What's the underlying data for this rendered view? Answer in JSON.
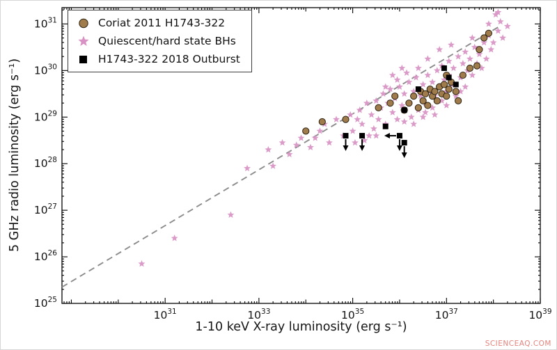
{
  "watermark": "SCIENCEAQ.COM",
  "chart_data": {
    "type": "scatter",
    "title": "",
    "xlabel": "1-10 keV X-ray luminosity (erg s⁻¹)",
    "ylabel": "5 GHz radio luminosity (erg s⁻¹)",
    "x_scale": "log",
    "y_scale": "log",
    "x_log_range": [
      28.8,
      39
    ],
    "y_log_range": [
      25,
      31.35
    ],
    "x_ticks_labeled": [
      31,
      33,
      35,
      37,
      39
    ],
    "x_ticks_minor": [
      29,
      30,
      32,
      34,
      36,
      38
    ],
    "y_ticks_labeled": [
      25,
      26,
      27,
      28,
      29,
      30,
      31
    ],
    "grid": false,
    "legend_position": "top-left",
    "legend": [
      {
        "label": "Coriat 2011 H1743-322",
        "marker": "circle",
        "color": "#a07c4c",
        "edge_color": "#2b2110"
      },
      {
        "label": "Quiescent/hard state BHs",
        "marker": "star",
        "color": "#d893c4",
        "edge_color": "#d893c4"
      },
      {
        "label": "H1743-322 2018 Outburst",
        "marker": "square",
        "color": "#000000",
        "edge_color": "#000000"
      }
    ],
    "trend_line": {
      "style": "dashed",
      "color": "#8c8c8c",
      "points_log": [
        [
          28.8,
          25.35
        ],
        [
          38.1,
          30.93
        ]
      ]
    },
    "series": [
      {
        "name": "Quiescent/hard state BHs",
        "marker": "star",
        "color": "#d893c4",
        "points": [
          [
            30.5,
            25.85
          ],
          [
            31.2,
            26.4
          ],
          [
            32.4,
            26.9
          ],
          [
            32.75,
            27.9
          ],
          [
            33.2,
            28.3
          ],
          [
            33.3,
            27.95
          ],
          [
            33.5,
            28.45
          ],
          [
            33.65,
            28.2
          ],
          [
            33.9,
            28.55
          ],
          [
            34.1,
            28.35
          ],
          [
            34.3,
            28.7
          ],
          [
            34.5,
            28.45
          ],
          [
            34.65,
            28.95
          ],
          [
            34.8,
            28.6
          ],
          [
            34.95,
            29.05
          ],
          [
            35.0,
            28.7
          ],
          [
            35.05,
            28.45
          ],
          [
            35.15,
            29.15
          ],
          [
            35.2,
            28.85
          ],
          [
            35.3,
            29.3
          ],
          [
            35.35,
            28.6
          ],
          [
            35.4,
            29.05
          ],
          [
            35.5,
            29.35
          ],
          [
            35.55,
            28.95
          ],
          [
            35.6,
            29.2
          ],
          [
            35.65,
            29.5
          ],
          [
            35.7,
            28.85
          ],
          [
            35.75,
            29.3
          ],
          [
            35.8,
            29.6
          ],
          [
            35.85,
            29.1
          ],
          [
            35.9,
            29.4
          ],
          [
            35.95,
            28.95
          ],
          [
            36.0,
            29.65
          ],
          [
            36.05,
            29.25
          ],
          [
            36.1,
            28.9
          ],
          [
            36.1,
            29.5
          ],
          [
            36.2,
            29.75
          ],
          [
            36.2,
            29.3
          ],
          [
            36.25,
            29.0
          ],
          [
            36.3,
            29.55
          ],
          [
            36.35,
            29.85
          ],
          [
            36.4,
            29.15
          ],
          [
            36.45,
            29.45
          ],
          [
            36.5,
            29.7
          ],
          [
            36.5,
            29.0
          ],
          [
            36.55,
            29.3
          ],
          [
            36.6,
            29.9
          ],
          [
            36.65,
            29.55
          ],
          [
            36.7,
            29.75
          ],
          [
            36.7,
            29.2
          ],
          [
            36.75,
            29.45
          ],
          [
            36.8,
            30.0
          ],
          [
            36.85,
            29.65
          ],
          [
            36.9,
            29.35
          ],
          [
            36.9,
            30.1
          ],
          [
            36.95,
            29.8
          ],
          [
            37.0,
            29.55
          ],
          [
            37.05,
            30.2
          ],
          [
            37.05,
            29.9
          ],
          [
            37.1,
            29.7
          ],
          [
            37.15,
            30.05
          ],
          [
            37.2,
            29.45
          ],
          [
            37.25,
            30.3
          ],
          [
            37.3,
            29.85
          ],
          [
            37.35,
            30.15
          ],
          [
            37.4,
            29.65
          ],
          [
            37.4,
            30.4
          ],
          [
            37.45,
            30.0
          ],
          [
            37.5,
            30.25
          ],
          [
            37.55,
            29.9
          ],
          [
            37.6,
            30.5
          ],
          [
            37.65,
            30.15
          ],
          [
            37.7,
            30.35
          ],
          [
            37.75,
            30.05
          ],
          [
            37.8,
            30.6
          ],
          [
            37.85,
            30.25
          ],
          [
            37.9,
            30.75
          ],
          [
            37.95,
            30.45
          ],
          [
            38.0,
            30.6
          ],
          [
            38.05,
            31.2
          ],
          [
            38.1,
            30.85
          ],
          [
            38.15,
            31.05
          ],
          [
            38.2,
            30.7
          ],
          [
            38.3,
            30.95
          ],
          [
            35.45,
            28.75
          ],
          [
            35.25,
            28.5
          ],
          [
            34.4,
            28.85
          ],
          [
            34.2,
            28.55
          ],
          [
            33.8,
            28.4
          ],
          [
            36.15,
            29.95
          ],
          [
            36.4,
            30.05
          ],
          [
            35.95,
            29.8
          ],
          [
            35.7,
            29.65
          ],
          [
            36.6,
            30.25
          ],
          [
            36.85,
            30.45
          ],
          [
            37.1,
            30.55
          ],
          [
            35.5,
            28.6
          ],
          [
            35.1,
            28.95
          ],
          [
            36.3,
            28.85
          ],
          [
            36.55,
            29.1
          ],
          [
            36.75,
            29.05
          ],
          [
            37.0,
            29.25
          ],
          [
            37.3,
            29.55
          ],
          [
            37.55,
            30.7
          ],
          [
            37.9,
            31.0
          ],
          [
            38.1,
            31.25
          ],
          [
            36.05,
            30.05
          ],
          [
            35.85,
            29.9
          ]
        ]
      },
      {
        "name": "Coriat 2011 H1743-322",
        "marker": "circle",
        "color": "#a07c4c",
        "edge_color": "#2b2110",
        "points": [
          [
            34.0,
            28.7
          ],
          [
            34.35,
            28.9
          ],
          [
            34.85,
            28.95
          ],
          [
            35.55,
            29.2
          ],
          [
            35.8,
            29.3
          ],
          [
            36.2,
            29.3
          ],
          [
            36.3,
            29.45
          ],
          [
            36.4,
            29.2
          ],
          [
            36.45,
            29.55
          ],
          [
            36.5,
            29.35
          ],
          [
            36.55,
            29.5
          ],
          [
            36.6,
            29.25
          ],
          [
            36.65,
            29.6
          ],
          [
            36.7,
            29.45
          ],
          [
            36.75,
            29.55
          ],
          [
            36.8,
            29.35
          ],
          [
            36.85,
            29.65
          ],
          [
            36.9,
            29.5
          ],
          [
            36.95,
            29.7
          ],
          [
            37.0,
            29.45
          ],
          [
            37.05,
            29.6
          ],
          [
            37.1,
            29.75
          ],
          [
            37.2,
            29.55
          ],
          [
            37.35,
            29.9
          ],
          [
            37.5,
            30.05
          ],
          [
            37.65,
            30.1
          ],
          [
            37.7,
            30.45
          ],
          [
            37.8,
            30.7
          ],
          [
            37.9,
            30.8
          ],
          [
            36.1,
            29.15
          ],
          [
            35.9,
            29.45
          ],
          [
            37.25,
            29.35
          ],
          [
            37.0,
            29.9
          ]
        ]
      },
      {
        "name": "H1743-322 2018 Outburst",
        "marker": "square",
        "color": "#000000",
        "points": [
          [
            34.85,
            28.6
          ],
          [
            35.2,
            28.6
          ],
          [
            35.7,
            28.8
          ],
          [
            36.0,
            28.6
          ],
          [
            36.1,
            28.45
          ],
          [
            36.1,
            29.15
          ],
          [
            36.4,
            29.6
          ],
          [
            36.95,
            30.05
          ],
          [
            37.05,
            29.85
          ],
          [
            37.2,
            29.7
          ]
        ],
        "upper_limits": [
          {
            "x": 34.85,
            "y": 28.6,
            "dirs": [
              "down"
            ]
          },
          {
            "x": 35.2,
            "y": 28.6,
            "dirs": [
              "down"
            ]
          },
          {
            "x": 36.0,
            "y": 28.6,
            "dirs": [
              "down",
              "left"
            ]
          },
          {
            "x": 36.1,
            "y": 28.45,
            "dirs": [
              "down"
            ]
          }
        ]
      }
    ]
  }
}
